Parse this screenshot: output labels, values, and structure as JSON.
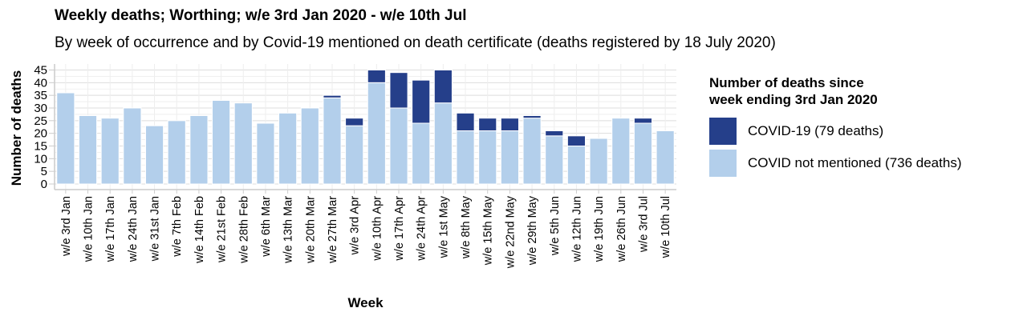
{
  "title": "Weekly deaths; Worthing; w/e 3rd Jan 2020 - w/e 10th Jul",
  "subtitle": "By week of occurrence and by Covid-19 mentioned on death certificate (deaths registered by 18 July 2020)",
  "legend": {
    "title_line1": "Number of deaths since",
    "title_line2": "week ending 3rd Jan 2020",
    "items": [
      {
        "label": "COVID-19 (79 deaths)",
        "color": "#253f8a"
      },
      {
        "label": "COVID not mentioned (736 deaths)",
        "color": "#b3cfeb"
      }
    ]
  },
  "chart_data": {
    "type": "bar",
    "stacked": true,
    "xlabel": "Week",
    "ylabel": "Number of deaths",
    "ylim": [
      0,
      45
    ],
    "yticks": [
      0,
      5,
      10,
      15,
      20,
      25,
      30,
      35,
      40,
      45
    ],
    "grid": true,
    "legend_position": "right",
    "categories": [
      "w/e 3rd Jan",
      "w/e 10th Jan",
      "w/e 17th Jan",
      "w/e 24th Jan",
      "w/e 31st Jan",
      "w/e 7th Feb",
      "w/e 14th Feb",
      "w/e 21st Feb",
      "w/e 28th Feb",
      "w/e 6th Mar",
      "w/e 13th Mar",
      "w/e 20th Mar",
      "w/e 27th Mar",
      "w/e 3rd Apr",
      "w/e 10th Apr",
      "w/e 17th Apr",
      "w/e 24th Apr",
      "w/e 1st May",
      "w/e 8th May",
      "w/e 15th May",
      "w/e 22nd May",
      "w/e 29th May",
      "w/e 5th Jun",
      "w/e 12th Jun",
      "w/e 19th Jun",
      "w/e 26th Jun",
      "w/e 3rd Jul",
      "w/e 10th Jul"
    ],
    "series": [
      {
        "name": "COVID not mentioned (736 deaths)",
        "color": "#b3cfeb",
        "values": [
          36,
          27,
          26,
          30,
          23,
          25,
          27,
          33,
          32,
          24,
          28,
          30,
          34,
          23,
          40,
          30,
          24,
          32,
          21,
          21,
          21,
          26,
          19,
          15,
          18,
          26,
          24,
          21
        ]
      },
      {
        "name": "COVID-19 (79 deaths)",
        "color": "#253f8a",
        "values": [
          0,
          0,
          0,
          0,
          0,
          0,
          0,
          0,
          0,
          0,
          0,
          0,
          1,
          3,
          5,
          14,
          17,
          13,
          7,
          5,
          5,
          1,
          2,
          4,
          0,
          0,
          2,
          0
        ]
      }
    ]
  }
}
